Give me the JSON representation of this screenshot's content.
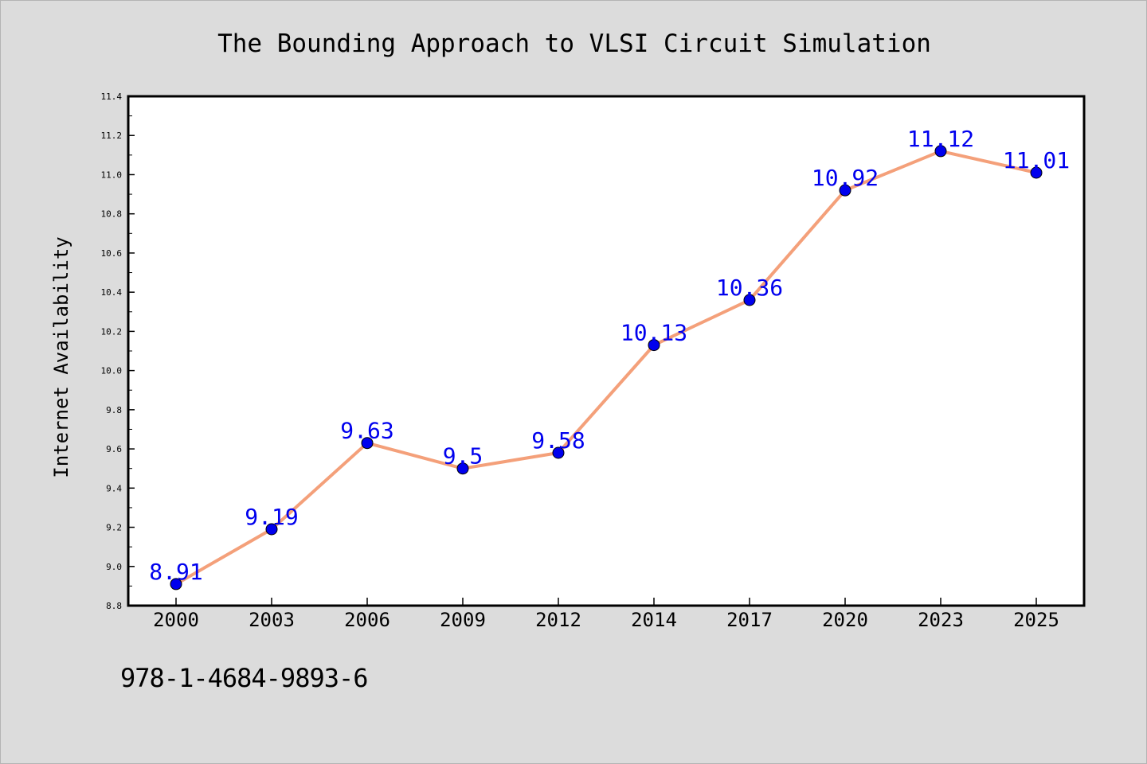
{
  "chart_data": {
    "type": "line",
    "title": "The Bounding Approach to VLSI Circuit Simulation",
    "xlabel": "",
    "ylabel": "Internet Availability",
    "categories": [
      "2000",
      "2003",
      "2006",
      "2009",
      "2012",
      "2014",
      "2017",
      "2020",
      "2023",
      "2025"
    ],
    "series": [
      {
        "values": [
          8.91,
          9.19,
          9.63,
          9.5,
          9.58,
          10.13,
          10.36,
          10.92,
          11.12,
          11.01
        ],
        "data_labels": [
          "8.91",
          "9.19",
          "9.63",
          "9.5",
          "9.58",
          "10.13",
          "10.36",
          "10.92",
          "11.12",
          "11.01"
        ],
        "line_color": "#f4a07a",
        "marker_color": "#0000ee",
        "label_color": "#0000ee"
      }
    ],
    "ylim": [
      8.8,
      11.4
    ],
    "yticks": [
      "8.8",
      "9.0",
      "9.2",
      "9.4",
      "9.6",
      "9.8",
      "10.0",
      "10.2",
      "10.4",
      "10.6",
      "10.8",
      "11.0",
      "11.2",
      "11.4"
    ],
    "grid": false,
    "legend": "none"
  },
  "caption": "978-1-4684-9893-6",
  "colors": {
    "background": "#dcdcdc",
    "plot_background": "#ffffff",
    "axis": "#000000"
  }
}
